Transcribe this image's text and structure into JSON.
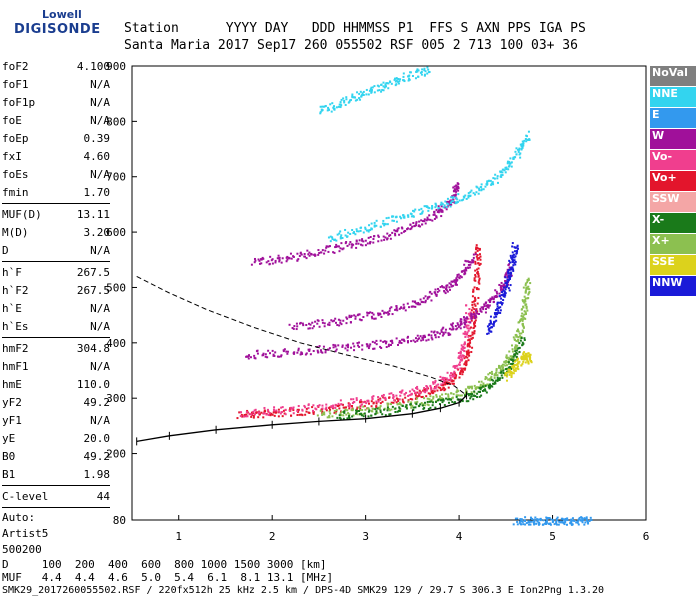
{
  "logo": {
    "line1": "Lowell",
    "line2": "DIGISONDE"
  },
  "header": {
    "labels": "Station      YYYY DAY   DDD HHMMSS P1  FFS S AXN PPS IGA PS",
    "values": "Santa Maria 2017 Sep17 260 055502 RSF 005 2 713 100 03+ 36"
  },
  "params": {
    "group1": [
      {
        "k": "foF2",
        "v": "4.100"
      },
      {
        "k": "foF1",
        "v": "N/A"
      },
      {
        "k": "foF1p",
        "v": "N/A"
      },
      {
        "k": "foE",
        "v": "N/A"
      },
      {
        "k": "foEp",
        "v": "0.39"
      },
      {
        "k": "fxI",
        "v": "4.60"
      },
      {
        "k": "foEs",
        "v": "N/A"
      },
      {
        "k": "fmin",
        "v": "1.70"
      }
    ],
    "group2": [
      {
        "k": "MUF(D)",
        "v": "13.11"
      },
      {
        "k": "M(D)",
        "v": "3.20"
      },
      {
        "k": "D",
        "v": "N/A"
      }
    ],
    "group3": [
      {
        "k": "h`F",
        "v": "267.5"
      },
      {
        "k": "h`F2",
        "v": "267.5"
      },
      {
        "k": "h`E",
        "v": "N/A"
      },
      {
        "k": "h`Es",
        "v": "N/A"
      }
    ],
    "group4": [
      {
        "k": "hmF2",
        "v": "304.8"
      },
      {
        "k": "hmF1",
        "v": "N/A"
      },
      {
        "k": "hmE",
        "v": "110.0"
      },
      {
        "k": "yF2",
        "v": "49.2"
      },
      {
        "k": "yF1",
        "v": "N/A"
      },
      {
        "k": "yE",
        "v": "20.0"
      },
      {
        "k": "B0",
        "v": "49.2"
      },
      {
        "k": "B1",
        "v": "1.98"
      }
    ],
    "group5": [
      {
        "k": "C-level",
        "v": "44"
      }
    ],
    "autoscale": [
      "Auto:",
      "Artist5",
      "500200"
    ]
  },
  "legend": [
    {
      "label": "NoVal",
      "color": "#7f7f7f"
    },
    {
      "label": "NNE",
      "color": "#33d4ef"
    },
    {
      "label": "E",
      "color": "#3399ee"
    },
    {
      "label": "W",
      "color": "#a0109a"
    },
    {
      "label": "Vo-",
      "color": "#f03e8e"
    },
    {
      "label": "Vo+",
      "color": "#e3152c"
    },
    {
      "label": "SSW",
      "color": "#f4a6a6"
    },
    {
      "label": "X-",
      "color": "#1a7a1a"
    },
    {
      "label": "X+",
      "color": "#8cc050"
    },
    {
      "label": "SSE",
      "color": "#dcd21c"
    },
    {
      "label": "NNW",
      "color": "#1a1ad8"
    }
  ],
  "footer": {
    "line1": "D     100  200  400  600  800 1000 1500 3000 [km]",
    "line2": "MUF   4.4  4.4  4.6  5.0  5.4  6.1  8.1 13.1 [MHz]",
    "line3": "SMK29_2017260055502.RSF / 220fx512h 25 kHz 2.5 km / DPS-4D SMK29 129 / 29.7 S 306.3 E Ion2Png 1.3.20"
  },
  "chart_data": {
    "type": "scatter",
    "xlim": [
      0.5,
      6.0
    ],
    "ylim": [
      80,
      900
    ],
    "xticks": [
      1,
      2,
      3,
      4,
      5,
      6
    ],
    "yticks": [
      80,
      200,
      300,
      400,
      500,
      600,
      700,
      800,
      900
    ],
    "grid": false,
    "legend_position": "right",
    "traces": [
      {
        "name": "Vo+",
        "color": "#e3152c",
        "points": [
          [
            1.65,
            272
          ],
          [
            2.0,
            274
          ],
          [
            2.5,
            280
          ],
          [
            3.0,
            290
          ],
          [
            3.5,
            305
          ],
          [
            3.8,
            320
          ],
          [
            4.0,
            345
          ],
          [
            4.1,
            390
          ],
          [
            4.15,
            450
          ],
          [
            4.18,
            520
          ],
          [
            4.2,
            580
          ]
        ]
      },
      {
        "name": "Vo-",
        "color": "#f03e8e",
        "points": [
          [
            1.65,
            275
          ],
          [
            2.2,
            280
          ],
          [
            2.8,
            292
          ],
          [
            3.3,
            305
          ],
          [
            3.7,
            322
          ],
          [
            3.95,
            350
          ],
          [
            4.05,
            400
          ],
          [
            4.1,
            470
          ]
        ]
      },
      {
        "name": "X+",
        "color": "#8cc050",
        "points": [
          [
            2.5,
            272
          ],
          [
            3.0,
            280
          ],
          [
            3.5,
            292
          ],
          [
            3.9,
            305
          ],
          [
            4.2,
            322
          ],
          [
            4.4,
            350
          ],
          [
            4.55,
            380
          ],
          [
            4.65,
            430
          ],
          [
            4.7,
            470
          ],
          [
            4.72,
            520
          ]
        ]
      },
      {
        "name": "X-",
        "color": "#1a7a1a",
        "points": [
          [
            2.7,
            270
          ],
          [
            3.2,
            278
          ],
          [
            3.7,
            290
          ],
          [
            4.1,
            304
          ],
          [
            4.35,
            325
          ],
          [
            4.55,
            360
          ],
          [
            4.68,
            410
          ]
        ]
      },
      {
        "name": "W",
        "color": "#a0109a",
        "points": [
          [
            1.7,
            380
          ],
          [
            2.2,
            385
          ],
          [
            2.7,
            392
          ],
          [
            3.2,
            400
          ],
          [
            3.6,
            410
          ],
          [
            3.9,
            425
          ],
          [
            4.1,
            445
          ],
          [
            4.3,
            470
          ],
          [
            4.45,
            500
          ],
          [
            4.55,
            540
          ]
        ]
      },
      {
        "name": "W",
        "color": "#a0109a",
        "points": [
          [
            2.2,
            430
          ],
          [
            2.7,
            440
          ],
          [
            3.1,
            452
          ],
          [
            3.5,
            470
          ],
          [
            3.8,
            495
          ],
          [
            4.0,
            520
          ],
          [
            4.15,
            560
          ]
        ]
      },
      {
        "name": "W",
        "color": "#a0109a",
        "points": [
          [
            1.8,
            548
          ],
          [
            2.2,
            556
          ],
          [
            2.6,
            570
          ],
          [
            3.0,
            585
          ],
          [
            3.4,
            605
          ],
          [
            3.7,
            628
          ],
          [
            3.9,
            655
          ],
          [
            4.0,
            690
          ]
        ]
      },
      {
        "name": "NNE",
        "color": "#33d4ef",
        "points": [
          [
            2.6,
            590
          ],
          [
            3.0,
            610
          ],
          [
            3.4,
            630
          ],
          [
            3.8,
            650
          ],
          [
            4.1,
            670
          ],
          [
            4.4,
            700
          ],
          [
            4.6,
            740
          ],
          [
            4.75,
            780
          ]
        ]
      },
      {
        "name": "NNE",
        "color": "#33d4ef",
        "points": [
          [
            2.5,
            820
          ],
          [
            2.8,
            840
          ],
          [
            3.1,
            860
          ],
          [
            3.4,
            880
          ],
          [
            3.7,
            895
          ]
        ]
      },
      {
        "name": "NNW",
        "color": "#1a1ad8",
        "points": [
          [
            4.3,
            420
          ],
          [
            4.4,
            460
          ],
          [
            4.5,
            500
          ],
          [
            4.55,
            540
          ],
          [
            4.6,
            580
          ]
        ]
      },
      {
        "name": "SSE",
        "color": "#dcd21c",
        "points": [
          [
            4.5,
            340
          ],
          [
            4.6,
            360
          ],
          [
            4.7,
            380
          ],
          [
            4.75,
            370
          ]
        ]
      },
      {
        "name": "E",
        "color": "#3399ee",
        "points": [
          [
            4.6,
            80
          ],
          [
            4.8,
            80
          ],
          [
            5.0,
            80
          ],
          [
            5.2,
            80
          ],
          [
            5.4,
            80
          ]
        ]
      }
    ],
    "profile_solid": [
      [
        0.55,
        222
      ],
      [
        0.9,
        232
      ],
      [
        1.4,
        243
      ],
      [
        2.0,
        252
      ],
      [
        2.5,
        258
      ],
      [
        3.0,
        263
      ],
      [
        3.5,
        272
      ],
      [
        3.8,
        282
      ],
      [
        4.0,
        292
      ],
      [
        4.08,
        305
      ]
    ],
    "profile_dashed": [
      [
        0.55,
        520
      ],
      [
        0.9,
        490
      ],
      [
        1.3,
        460
      ],
      [
        1.8,
        428
      ],
      [
        2.3,
        400
      ],
      [
        2.8,
        378
      ],
      [
        3.3,
        358
      ],
      [
        3.7,
        338
      ],
      [
        3.95,
        322
      ],
      [
        4.08,
        305
      ]
    ]
  }
}
